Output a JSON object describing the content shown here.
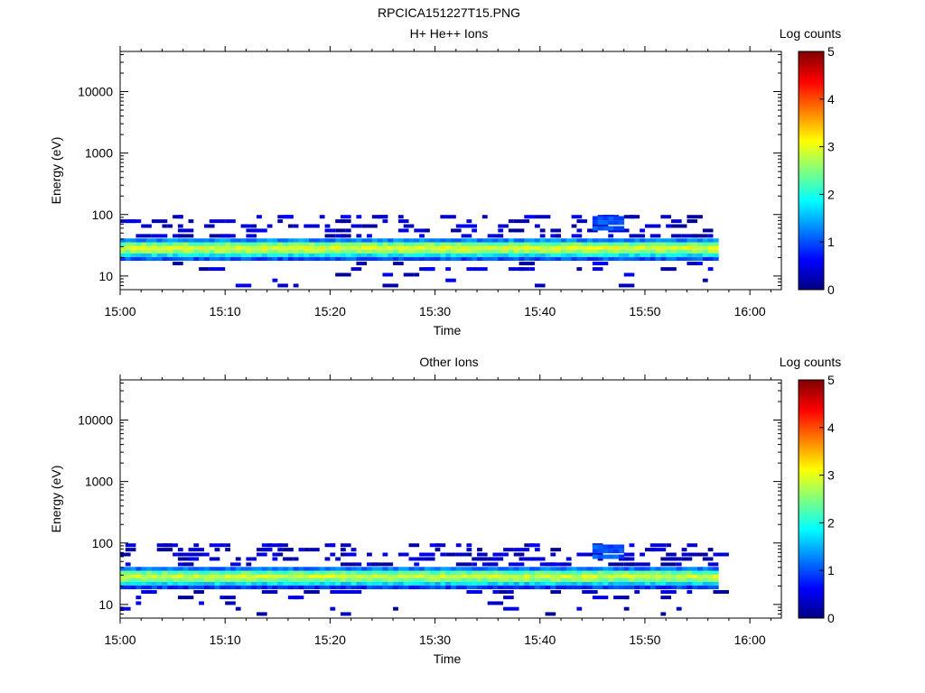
{
  "figure_title": "RPCICA151227T15.PNG",
  "chart_data": [
    {
      "type": "heatmap",
      "title": "H+ He++ Ions",
      "xlabel": "Time",
      "ylabel": "Energy (eV)",
      "x_ticks": [
        "15:00",
        "15:10",
        "15:20",
        "15:30",
        "15:40",
        "15:50",
        "16:00"
      ],
      "x_range": [
        "15:00",
        "16:03"
      ],
      "y_scale": "log",
      "y_ticks": [
        "10",
        "100",
        "1000",
        "10000"
      ],
      "y_range": [
        6,
        45000
      ],
      "data_time_range": [
        "15:00",
        "15:57"
      ],
      "colorbar": {
        "label": "Log counts",
        "ticks": [
          "0",
          "1",
          "2",
          "3",
          "4",
          "5"
        ],
        "range": [
          0,
          5
        ],
        "colormap": "jet"
      },
      "dense_band": [
        {
          "energy_ev": 19,
          "log_counts": 1.0
        },
        {
          "energy_ev": 22,
          "log_counts": 1.8
        },
        {
          "energy_ev": 25,
          "log_counts": 2.6
        },
        {
          "energy_ev": 29,
          "log_counts": 3.0
        },
        {
          "energy_ev": 33,
          "log_counts": 2.4
        },
        {
          "energy_ev": 38,
          "log_counts": 1.3
        }
      ],
      "enhanced_interval": {
        "start": "15:45",
        "end": "15:48",
        "energy_range_ev": [
          55,
          95
        ],
        "log_counts": 1.0
      }
    },
    {
      "type": "heatmap",
      "title": "Other Ions",
      "xlabel": "Time",
      "ylabel": "Energy (eV)",
      "x_ticks": [
        "15:00",
        "15:10",
        "15:20",
        "15:30",
        "15:40",
        "15:50",
        "16:00"
      ],
      "x_range": [
        "15:00",
        "16:03"
      ],
      "y_scale": "log",
      "y_ticks": [
        "10",
        "100",
        "1000",
        "10000"
      ],
      "y_range": [
        6,
        45000
      ],
      "data_time_range": [
        "15:00",
        "15:57"
      ],
      "colorbar": {
        "label": "Log counts",
        "ticks": [
          "0",
          "1",
          "2",
          "3",
          "4",
          "5"
        ],
        "range": [
          0,
          5
        ],
        "colormap": "jet"
      },
      "dense_band": [
        {
          "energy_ev": 19,
          "log_counts": 0.9
        },
        {
          "energy_ev": 22,
          "log_counts": 1.7
        },
        {
          "energy_ev": 25,
          "log_counts": 2.5
        },
        {
          "energy_ev": 29,
          "log_counts": 2.9
        },
        {
          "energy_ev": 33,
          "log_counts": 2.3
        },
        {
          "energy_ev": 38,
          "log_counts": 1.2
        }
      ],
      "enhanced_interval": {
        "start": "15:45",
        "end": "15:48",
        "energy_range_ev": [
          55,
          95
        ],
        "log_counts": 1.0
      }
    }
  ]
}
